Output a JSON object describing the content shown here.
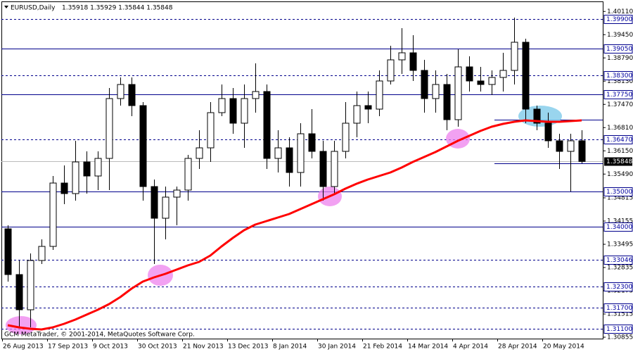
{
  "chart_data": {
    "type": "candlestick",
    "title": "EURUSD,Daily",
    "subtitle": "1.35918 1.35929 1.35844 1.35848",
    "annotation": "GCM MetaTrader, © 2001-2014, MetaQuotes Software Corp.",
    "categories": [
      "26 Aug 2013",
      null,
      null,
      null,
      "17 Sep 2013",
      null,
      null,
      null,
      "9 Oct 2013",
      null,
      null,
      null,
      "30 Oct 2013",
      null,
      null,
      null,
      "21 Nov 2013",
      null,
      null,
      null,
      "13 Dec 2013",
      null,
      null,
      null,
      "8 Jan 2014",
      null,
      null,
      null,
      "30 Jan 2014",
      null,
      null,
      null,
      "21 Feb 2014",
      null,
      null,
      null,
      "14 Mar 2014",
      null,
      null,
      null,
      "4 Apr 2014",
      null,
      null,
      null,
      "28 Apr 2014",
      null,
      null,
      null,
      "20 May 2014",
      null,
      null,
      null
    ],
    "open": [
      1.33935,
      1.32635,
      1.31635,
      1.33035,
      1.33435,
      1.35235,
      1.34935,
      1.35835,
      1.35435,
      1.35935,
      1.37635,
      1.38035,
      1.37435,
      1.35135,
      1.34235,
      1.34835,
      1.35035,
      1.35935,
      1.36235,
      1.37235,
      1.37635,
      1.36935,
      1.37635,
      1.37835,
      1.35935,
      1.36235,
      1.35535,
      1.36635,
      1.36135,
      1.35135,
      1.36135,
      1.36935,
      1.37435,
      1.37335,
      1.38135,
      1.38735,
      1.38935,
      1.38435,
      1.37635,
      1.38035,
      1.37035,
      1.38535,
      1.38135,
      1.38035,
      1.38235,
      1.38435,
      1.39235,
      1.37335,
      1.36935,
      1.36435,
      1.36135,
      1.36435
    ],
    "high": [
      1.34035,
      1.33035,
      1.33235,
      1.33635,
      1.35435,
      1.35735,
      1.36435,
      1.36135,
      1.36135,
      1.37935,
      1.38235,
      1.38235,
      1.37535,
      1.35335,
      1.35135,
      1.35135,
      1.36035,
      1.36735,
      1.37535,
      1.38035,
      1.37935,
      1.38035,
      1.38635,
      1.38035,
      1.36735,
      1.36535,
      1.36935,
      1.37335,
      1.36435,
      1.36435,
      1.37535,
      1.37835,
      1.37835,
      1.38435,
      1.39135,
      1.39635,
      1.39435,
      1.38735,
      1.38435,
      1.38335,
      1.39035,
      1.38835,
      1.38535,
      1.38435,
      1.38935,
      1.39935,
      1.39335,
      1.37435,
      1.37235,
      1.36635,
      1.36635,
      1.36735
    ],
    "low": [
      1.32435,
      1.31135,
      1.31135,
      1.32935,
      1.33335,
      1.34635,
      1.34735,
      1.34935,
      1.35035,
      1.35035,
      1.37435,
      1.37135,
      1.34735,
      1.32935,
      1.33635,
      1.34035,
      1.34735,
      1.35635,
      1.35835,
      1.37135,
      1.36635,
      1.36235,
      1.37235,
      1.35635,
      1.35535,
      1.35135,
      1.35135,
      1.35935,
      1.34735,
      1.34935,
      1.35935,
      1.36535,
      1.36935,
      1.37135,
      1.38035,
      1.38335,
      1.38135,
      1.37235,
      1.37235,
      1.36735,
      1.36835,
      1.37835,
      1.37835,
      1.37735,
      1.37835,
      1.38035,
      1.36935,
      1.36735,
      1.36235,
      1.35635,
      1.34995,
      1.35795
    ],
    "close": [
      1.32635,
      1.31635,
      1.33035,
      1.33435,
      1.35235,
      1.34935,
      1.35835,
      1.35435,
      1.35935,
      1.37635,
      1.38035,
      1.37435,
      1.35135,
      1.34235,
      1.34835,
      1.35035,
      1.35935,
      1.36235,
      1.37235,
      1.37635,
      1.36935,
      1.37635,
      1.37835,
      1.35935,
      1.36235,
      1.35535,
      1.36635,
      1.36135,
      1.35135,
      1.36135,
      1.36935,
      1.37435,
      1.37335,
      1.38135,
      1.38735,
      1.38935,
      1.38435,
      1.37635,
      1.38035,
      1.37035,
      1.38535,
      1.38135,
      1.38035,
      1.38235,
      1.38435,
      1.39235,
      1.37335,
      1.36935,
      1.36435,
      1.36135,
      1.36435,
      1.35848
    ],
    "up_color": "#ffffff",
    "down_color": "#000000",
    "moving_average": {
      "color": "#ff0000",
      "values": [
        1.31195,
        1.31135,
        1.31095,
        1.31075,
        1.31135,
        1.31235,
        1.31355,
        1.31495,
        1.31635,
        1.31795,
        1.31995,
        1.32235,
        1.32435,
        1.32555,
        1.32655,
        1.32775,
        1.32895,
        1.32995,
        1.33175,
        1.33435,
        1.33675,
        1.33895,
        1.34055,
        1.34155,
        1.34255,
        1.34355,
        1.34495,
        1.34635,
        1.34775,
        1.34915,
        1.35075,
        1.35215,
        1.35335,
        1.35435,
        1.35535,
        1.35675,
        1.35835,
        1.35975,
        1.36115,
        1.36275,
        1.36435,
        1.36575,
        1.36715,
        1.36835,
        1.36915,
        1.36975,
        1.37015,
        1.36995,
        1.36975,
        1.36975,
        1.36995,
        1.37015
      ]
    },
    "ylim": [
      1.30815,
      1.40275
    ],
    "yticks": [
      {
        "value": 1.4011,
        "label": "1.40110"
      },
      {
        "value": 1.3945,
        "label": "1.39450"
      },
      {
        "value": 1.3879,
        "label": "1.38790"
      },
      {
        "value": 1.3813,
        "label": "1.38130"
      },
      {
        "value": 1.3747,
        "label": "1.37470"
      },
      {
        "value": 1.3681,
        "label": "1.36810"
      },
      {
        "value": 1.3615,
        "label": "1.36150"
      },
      {
        "value": 1.3549,
        "label": "1.35490"
      },
      1.34815,
      1.34155,
      1.33495,
      1.32835,
      1.32175,
      1.31515,
      1.30855
    ],
    "levels": [
      {
        "value": 1.399,
        "label": "1.39900",
        "style": "dashed"
      },
      {
        "value": 1.3905,
        "label": "1.39050",
        "style": "solid"
      },
      {
        "value": 1.383,
        "label": "1.38300",
        "style": "dashed"
      },
      {
        "value": 1.3775,
        "label": "1.37750",
        "style": "solid"
      },
      {
        "value": 1.3647,
        "label": "1.36470",
        "style": "dashed"
      },
      {
        "value": 1.35,
        "label": "1.35000",
        "style": "solid"
      },
      {
        "value": 1.34,
        "label": "1.34000",
        "style": "solid"
      },
      {
        "value": 1.33046,
        "label": 1.33046,
        "style": "dashed"
      },
      {
        "value": 1.323,
        "label": "1.32300",
        "style": "dashed"
      },
      {
        "value": 1.317,
        "label": "1.31700",
        "style": "dashed"
      },
      {
        "value": 1.311,
        "label": "1.31100",
        "style": "dashed"
      }
    ],
    "current_price": 1.35848,
    "trend_lines": [
      1.37035,
      1.35795
    ],
    "grid": false
  }
}
